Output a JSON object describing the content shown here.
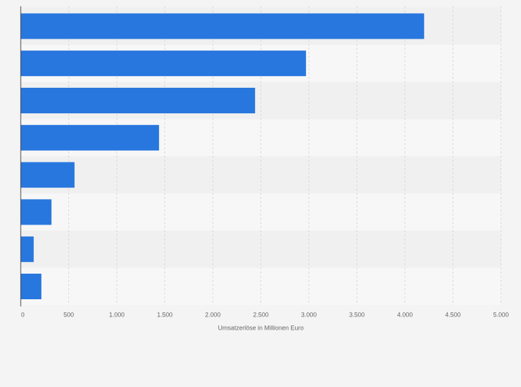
{
  "chart_data": {
    "type": "bar",
    "orientation": "horizontal",
    "categories": [
      "",
      "",
      "",
      "",
      "",
      "",
      "",
      ""
    ],
    "values": [
      4200,
      2970,
      2440,
      1440,
      560,
      320,
      135,
      215
    ],
    "xlabel": "Umsatzerlöse in Millionen Euro",
    "ylabel": "",
    "xlim": [
      0,
      5000
    ],
    "xticks": [
      0,
      500,
      1000,
      1500,
      2000,
      2500,
      3000,
      3500,
      4000,
      4500,
      5000
    ],
    "tick_labels": [
      "0",
      "500",
      "1.000",
      "1.500",
      "2.000",
      "2.500",
      "3.000",
      "3.500",
      "4.000",
      "4.500",
      "5.000"
    ],
    "grid": "vertical dashed",
    "legend": "none",
    "colors": {
      "bar": "#2877de",
      "band_dark": "#f0f0f0",
      "band_light": "#f7f7f7",
      "grid": "#d8d8d8",
      "axis": "#444444",
      "text": "#666666"
    }
  }
}
